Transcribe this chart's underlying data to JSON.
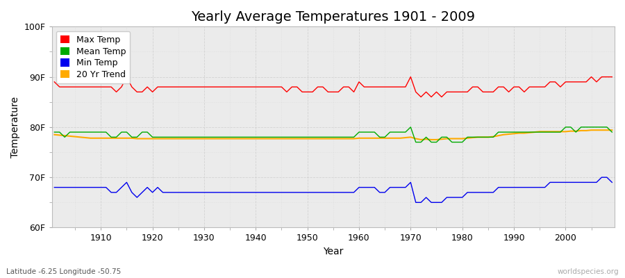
{
  "title": "Yearly Average Temperatures 1901 - 2009",
  "xlabel": "Year",
  "ylabel": "Temperature",
  "subtitle_left": "Latitude -6.25 Longitude -50.75",
  "subtitle_right": "worldspecies.org",
  "years": [
    1901,
    1902,
    1903,
    1904,
    1905,
    1906,
    1907,
    1908,
    1909,
    1910,
    1911,
    1912,
    1913,
    1914,
    1915,
    1916,
    1917,
    1918,
    1919,
    1920,
    1921,
    1922,
    1923,
    1924,
    1925,
    1926,
    1927,
    1928,
    1929,
    1930,
    1931,
    1932,
    1933,
    1934,
    1935,
    1936,
    1937,
    1938,
    1939,
    1940,
    1941,
    1942,
    1943,
    1944,
    1945,
    1946,
    1947,
    1948,
    1949,
    1950,
    1951,
    1952,
    1953,
    1954,
    1955,
    1956,
    1957,
    1958,
    1959,
    1960,
    1961,
    1962,
    1963,
    1964,
    1965,
    1966,
    1967,
    1968,
    1969,
    1970,
    1971,
    1972,
    1973,
    1974,
    1975,
    1976,
    1977,
    1978,
    1979,
    1980,
    1981,
    1982,
    1983,
    1984,
    1985,
    1986,
    1987,
    1988,
    1989,
    1990,
    1991,
    1992,
    1993,
    1994,
    1995,
    1996,
    1997,
    1998,
    1999,
    2000,
    2001,
    2002,
    2003,
    2004,
    2005,
    2006,
    2007,
    2008,
    2009
  ],
  "max_temp": [
    89,
    88,
    88,
    88,
    88,
    88,
    88,
    88,
    88,
    88,
    88,
    88,
    87,
    88,
    90,
    88,
    87,
    87,
    88,
    87,
    88,
    88,
    88,
    88,
    88,
    88,
    88,
    88,
    88,
    88,
    88,
    88,
    88,
    88,
    88,
    88,
    88,
    88,
    88,
    88,
    88,
    88,
    88,
    88,
    88,
    87,
    88,
    88,
    87,
    87,
    87,
    88,
    88,
    87,
    87,
    87,
    88,
    88,
    87,
    89,
    88,
    88,
    88,
    88,
    88,
    88,
    88,
    88,
    88,
    90,
    87,
    86,
    87,
    86,
    87,
    86,
    87,
    87,
    87,
    87,
    87,
    88,
    88,
    87,
    87,
    87,
    88,
    88,
    87,
    88,
    88,
    87,
    88,
    88,
    88,
    88,
    89,
    89,
    88,
    89,
    89,
    89,
    89,
    89,
    90,
    89,
    90,
    90,
    90
  ],
  "mean_temp": [
    79,
    79,
    78,
    79,
    79,
    79,
    79,
    79,
    79,
    79,
    79,
    78,
    78,
    79,
    79,
    78,
    78,
    79,
    79,
    78,
    78,
    78,
    78,
    78,
    78,
    78,
    78,
    78,
    78,
    78,
    78,
    78,
    78,
    78,
    78,
    78,
    78,
    78,
    78,
    78,
    78,
    78,
    78,
    78,
    78,
    78,
    78,
    78,
    78,
    78,
    78,
    78,
    78,
    78,
    78,
    78,
    78,
    78,
    78,
    79,
    79,
    79,
    79,
    78,
    78,
    79,
    79,
    79,
    79,
    80,
    77,
    77,
    78,
    77,
    77,
    78,
    78,
    77,
    77,
    77,
    78,
    78,
    78,
    78,
    78,
    78,
    79,
    79,
    79,
    79,
    79,
    79,
    79,
    79,
    79,
    79,
    79,
    79,
    79,
    80,
    80,
    79,
    80,
    80,
    80,
    80,
    80,
    80,
    79
  ],
  "min_temp": [
    68,
    68,
    68,
    68,
    68,
    68,
    68,
    68,
    68,
    68,
    68,
    67,
    67,
    68,
    69,
    67,
    66,
    67,
    68,
    67,
    68,
    67,
    67,
    67,
    67,
    67,
    67,
    67,
    67,
    67,
    67,
    67,
    67,
    67,
    67,
    67,
    67,
    67,
    67,
    67,
    67,
    67,
    67,
    67,
    67,
    67,
    67,
    67,
    67,
    67,
    67,
    67,
    67,
    67,
    67,
    67,
    67,
    67,
    67,
    68,
    68,
    68,
    68,
    67,
    67,
    68,
    68,
    68,
    68,
    69,
    65,
    65,
    66,
    65,
    65,
    65,
    66,
    66,
    66,
    66,
    67,
    67,
    67,
    67,
    67,
    67,
    68,
    68,
    68,
    68,
    68,
    68,
    68,
    68,
    68,
    68,
    69,
    69,
    69,
    69,
    69,
    69,
    69,
    69,
    69,
    69,
    70,
    70,
    69
  ],
  "trend_20yr": [
    78.5,
    78.4,
    78.3,
    78.2,
    78.1,
    78.0,
    77.9,
    77.8,
    77.8,
    77.8,
    77.8,
    77.8,
    77.8,
    77.8,
    77.8,
    77.8,
    77.7,
    77.7,
    77.7,
    77.7,
    77.7,
    77.7,
    77.7,
    77.7,
    77.7,
    77.7,
    77.7,
    77.7,
    77.7,
    77.7,
    77.7,
    77.7,
    77.7,
    77.7,
    77.7,
    77.7,
    77.7,
    77.7,
    77.7,
    77.7,
    77.7,
    77.7,
    77.7,
    77.7,
    77.7,
    77.7,
    77.7,
    77.7,
    77.7,
    77.7,
    77.7,
    77.7,
    77.7,
    77.7,
    77.7,
    77.7,
    77.7,
    77.7,
    77.7,
    77.8,
    77.8,
    77.8,
    77.8,
    77.8,
    77.8,
    77.8,
    77.8,
    77.8,
    77.9,
    78.0,
    77.7,
    77.5,
    77.6,
    77.5,
    77.5,
    77.6,
    77.7,
    77.7,
    77.7,
    77.7,
    77.8,
    77.9,
    78.0,
    78.0,
    78.0,
    78.1,
    78.3,
    78.5,
    78.6,
    78.7,
    78.8,
    78.8,
    78.9,
    79.0,
    79.1,
    79.1,
    79.1,
    79.1,
    79.1,
    79.1,
    79.2,
    79.2,
    79.3,
    79.3,
    79.4,
    79.4,
    79.4,
    79.4,
    79.4
  ],
  "max_color": "#ff0000",
  "mean_color": "#00aa00",
  "min_color": "#0000ee",
  "trend_color": "#ffaa00",
  "fig_bg_color": "#ffffff",
  "plot_bg_color": "#ebebeb",
  "ylim": [
    60,
    100
  ],
  "yticks": [
    60,
    70,
    80,
    90,
    100
  ],
  "ytick_labels": [
    "60F",
    "70F",
    "80F",
    "90F",
    "100F"
  ],
  "xtick_start": 1910,
  "xtick_end": 2000,
  "xtick_step": 10,
  "title_fontsize": 14,
  "axis_label_fontsize": 10,
  "tick_fontsize": 9,
  "legend_fontsize": 9
}
